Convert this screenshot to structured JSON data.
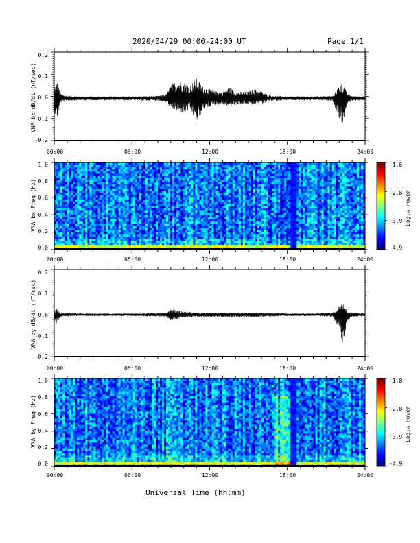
{
  "header": {
    "title": "2020/04/29  00:00-24:00 UT",
    "page": "Page 1/1"
  },
  "x_axis_label": "Universal Time (hh:mm)",
  "chart_data": [
    {
      "type": "line",
      "ylabel": "VNA bx dB/dt (nT/sec)",
      "xlim": [
        "00:00",
        "24:00"
      ],
      "ylim": [
        -0.2,
        0.2
      ],
      "x_ticks": [
        "00:00",
        "06:00",
        "12:00",
        "18:00",
        "24:00"
      ],
      "y_ticks": [
        "-0.2",
        "-0.1",
        "0.0",
        "0.1",
        "0.2"
      ],
      "envelope": {
        "hours": [
          0.0,
          0.2,
          0.5,
          1.0,
          2.0,
          4.0,
          6.0,
          8.0,
          8.7,
          9.0,
          9.5,
          10.0,
          10.5,
          11.0,
          11.5,
          12.0,
          12.5,
          13.0,
          13.5,
          14.0,
          14.5,
          15.0,
          15.5,
          16.0,
          16.5,
          17.0,
          18.0,
          20.0,
          21.5,
          22.0,
          22.3,
          22.6,
          23.0,
          24.0
        ],
        "max": [
          0.04,
          0.08,
          0.02,
          0.01,
          0.008,
          0.008,
          0.008,
          0.01,
          0.02,
          0.06,
          0.08,
          0.07,
          0.06,
          0.09,
          0.05,
          0.04,
          0.03,
          0.03,
          0.05,
          0.03,
          0.03,
          0.03,
          0.04,
          0.03,
          0.015,
          0.01,
          0.008,
          0.008,
          0.01,
          0.06,
          0.07,
          0.02,
          0.01,
          0.008
        ],
        "min": [
          -0.06,
          -0.1,
          -0.02,
          -0.012,
          -0.01,
          -0.01,
          -0.01,
          -0.012,
          -0.02,
          -0.05,
          -0.06,
          -0.07,
          -0.05,
          -0.12,
          -0.05,
          -0.04,
          -0.03,
          -0.03,
          -0.04,
          -0.03,
          -0.03,
          -0.03,
          -0.03,
          -0.03,
          -0.015,
          -0.012,
          -0.01,
          -0.01,
          -0.012,
          -0.1,
          -0.12,
          -0.03,
          -0.012,
          -0.01
        ]
      }
    },
    {
      "type": "heatmap",
      "ylabel": "VNA bx Freq (Hz)",
      "xlim": [
        "00:00",
        "24:00"
      ],
      "ylim": [
        0.0,
        1.0
      ],
      "x_ticks": [
        "00:00",
        "06:00",
        "12:00",
        "18:00",
        "24:00"
      ],
      "y_ticks": [
        "0.0",
        "0.2",
        "0.4",
        "0.6",
        "0.8",
        "1.0"
      ],
      "colorbar": {
        "label": "Log₁₀ Power",
        "ticks": [
          "-1.8",
          "-2.8",
          "-3.9",
          "-4.9"
        ],
        "range": [
          -4.9,
          -1.8
        ]
      },
      "dark_band_hour": 18.5
    },
    {
      "type": "line",
      "ylabel": "VNA by dB/dt (nT/sec)",
      "xlim": [
        "00:00",
        "24:00"
      ],
      "ylim": [
        -0.2,
        0.2
      ],
      "x_ticks": [
        "00:00",
        "06:00",
        "12:00",
        "18:00",
        "24:00"
      ],
      "y_ticks": [
        "-0.2",
        "-0.1",
        "0.0",
        "0.1",
        "0.2"
      ],
      "envelope": {
        "hours": [
          0.0,
          0.2,
          0.5,
          1.0,
          2.0,
          4.0,
          6.0,
          8.0,
          8.7,
          9.0,
          9.5,
          10.0,
          11.0,
          12.0,
          13.0,
          14.0,
          15.0,
          16.0,
          17.0,
          18.0,
          20.0,
          21.5,
          22.0,
          22.3,
          22.6,
          23.0,
          24.0
        ],
        "max": [
          0.02,
          0.03,
          0.01,
          0.008,
          0.006,
          0.006,
          0.006,
          0.008,
          0.01,
          0.03,
          0.02,
          0.015,
          0.01,
          0.01,
          0.01,
          0.01,
          0.01,
          0.01,
          0.008,
          0.006,
          0.006,
          0.01,
          0.04,
          0.06,
          0.02,
          0.01,
          0.006
        ],
        "min": [
          -0.02,
          -0.04,
          -0.01,
          -0.008,
          -0.006,
          -0.006,
          -0.006,
          -0.008,
          -0.01,
          -0.03,
          -0.02,
          -0.015,
          -0.01,
          -0.01,
          -0.01,
          -0.01,
          -0.01,
          -0.01,
          -0.008,
          -0.006,
          -0.006,
          -0.01,
          -0.07,
          -0.15,
          -0.03,
          -0.01,
          -0.006
        ]
      }
    },
    {
      "type": "heatmap",
      "ylabel": "VNA by Freq (Hz)",
      "xlim": [
        "00:00",
        "24:00"
      ],
      "ylim": [
        0.0,
        1.0
      ],
      "x_ticks": [
        "00:00",
        "06:00",
        "12:00",
        "18:00",
        "24:00"
      ],
      "y_ticks": [
        "0.0",
        "0.2",
        "0.4",
        "0.6",
        "0.8",
        "1.0"
      ],
      "colorbar": {
        "label": "Log₁₀ Power",
        "ticks": [
          "-1.8",
          "-2.8",
          "-3.9",
          "-4.9"
        ],
        "range": [
          -4.9,
          -1.8
        ]
      },
      "dark_band_hour": 18.5
    }
  ]
}
